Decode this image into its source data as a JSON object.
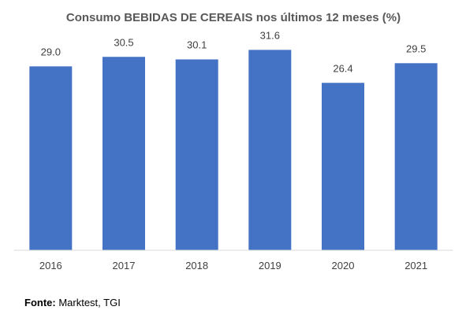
{
  "chart_data": {
    "type": "bar",
    "title": "Consumo BEBIDAS DE CEREAIS nos últimos 12 meses  (%)",
    "categories": [
      "2016",
      "2017",
      "2018",
      "2019",
      "2020",
      "2021"
    ],
    "series": [
      {
        "values": [
          29.0,
          30.5,
          30.1,
          31.6,
          26.4,
          29.5
        ],
        "labels": [
          "29.0",
          "30.5",
          "30.1",
          "31.6",
          "26.4",
          "29.5"
        ],
        "color": "#4472C4"
      }
    ],
    "xlabel": "",
    "ylabel": "",
    "ylim": [
      0,
      35
    ],
    "grid": false,
    "legend": "none"
  },
  "source": {
    "label": "Fonte:",
    "text": " Marktest, TGI"
  }
}
